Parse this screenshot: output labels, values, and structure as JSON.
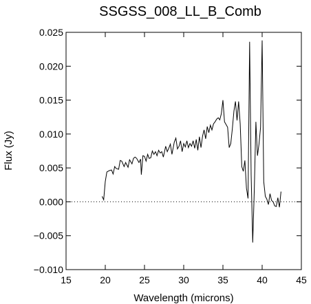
{
  "chart_data": {
    "type": "line",
    "title": "SSGSS_008_LL_B_Comb",
    "xlabel": "Wavelength (microns)",
    "ylabel": "Flux (Jy)",
    "xlim": [
      15,
      45
    ],
    "ylim": [
      -0.01,
      0.025
    ],
    "x_ticks": [
      15,
      20,
      25,
      30,
      35,
      40,
      45
    ],
    "x_tick_labels": [
      "15",
      "20",
      "25",
      "30",
      "35",
      "40",
      "45"
    ],
    "y_ticks": [
      -0.01,
      -0.005,
      0.0,
      0.005,
      0.01,
      0.015,
      0.02,
      0.025
    ],
    "y_tick_labels": [
      "−0.010",
      "−0.005",
      "0.000",
      "0.005",
      "0.010",
      "0.015",
      "0.020",
      "0.025"
    ],
    "reference_line": {
      "y": 0.0,
      "style": "dotted"
    },
    "grid": false,
    "line_color": "#000000",
    "series": [
      {
        "x": [
          19.6,
          19.8,
          20.0,
          20.2,
          20.5,
          20.8,
          21.0,
          21.2,
          21.4,
          21.7,
          21.9,
          22.1,
          22.4,
          22.6,
          22.9,
          23.1,
          23.4,
          23.6,
          23.8,
          24.0,
          24.3,
          24.5,
          24.6,
          24.8,
          25.0,
          25.2,
          25.4,
          25.6,
          25.8,
          26.0,
          26.2,
          26.4,
          26.6,
          26.8,
          27.0,
          27.2,
          27.4,
          27.7,
          27.9,
          28.1,
          28.3,
          28.5,
          28.8,
          29.0,
          29.2,
          29.4,
          29.6,
          29.8,
          30.0,
          30.2,
          30.4,
          30.6,
          30.8,
          31.0,
          31.2,
          31.4,
          31.6,
          31.8,
          32.0,
          32.2,
          32.4,
          32.6,
          32.8,
          33.0,
          33.2,
          33.4,
          33.6,
          33.8,
          34.0,
          34.2,
          34.4,
          34.6,
          34.8,
          35.0,
          35.2,
          35.4,
          35.6,
          35.8,
          36.0,
          36.2,
          36.4,
          36.6,
          36.8,
          37.0,
          37.2,
          37.4,
          37.6,
          37.8,
          38.0,
          38.2,
          38.4,
          38.6,
          38.8,
          39.0,
          39.2,
          39.4,
          39.6,
          39.8,
          40.0,
          40.2,
          40.4,
          40.6,
          40.8,
          41.0,
          41.2,
          41.4,
          41.6,
          41.8,
          42.0,
          42.2,
          42.4
        ],
        "values": [
          0.0008,
          0.0003,
          0.003,
          0.0044,
          0.0046,
          0.0047,
          0.0041,
          0.0052,
          0.0049,
          0.0048,
          0.0061,
          0.006,
          0.0052,
          0.0058,
          0.0051,
          0.0062,
          0.0056,
          0.0064,
          0.0066,
          0.0064,
          0.0058,
          0.0063,
          0.004,
          0.0068,
          0.0067,
          0.006,
          0.007,
          0.0064,
          0.0065,
          0.0075,
          0.007,
          0.0074,
          0.0068,
          0.0076,
          0.0072,
          0.0074,
          0.0066,
          0.0082,
          0.0074,
          0.0079,
          0.0085,
          0.007,
          0.0088,
          0.0094,
          0.0078,
          0.0082,
          0.009,
          0.0074,
          0.0086,
          0.0081,
          0.009,
          0.008,
          0.0086,
          0.0082,
          0.009,
          0.0079,
          0.0092,
          0.0076,
          0.0096,
          0.008,
          0.0097,
          0.0106,
          0.0093,
          0.0111,
          0.0102,
          0.0113,
          0.0106,
          0.0115,
          0.0118,
          0.0122,
          0.0124,
          0.0121,
          0.013,
          0.015,
          0.0118,
          0.0114,
          0.011,
          0.008,
          0.0086,
          0.0108,
          0.0134,
          0.0148,
          0.012,
          0.0148,
          0.0115,
          0.0052,
          0.0045,
          0.0061,
          0.002,
          0.0005,
          0.0236,
          0.004,
          -0.006,
          0.0018,
          0.0118,
          0.0068,
          0.0085,
          0.011,
          0.0238,
          0.003,
          0.0008,
          0.0004,
          -0.0004,
          0.0012,
          0.0002,
          0.0,
          -0.0006,
          -0.0007,
          0.0006,
          -0.0008,
          0.0015
        ]
      }
    ]
  }
}
